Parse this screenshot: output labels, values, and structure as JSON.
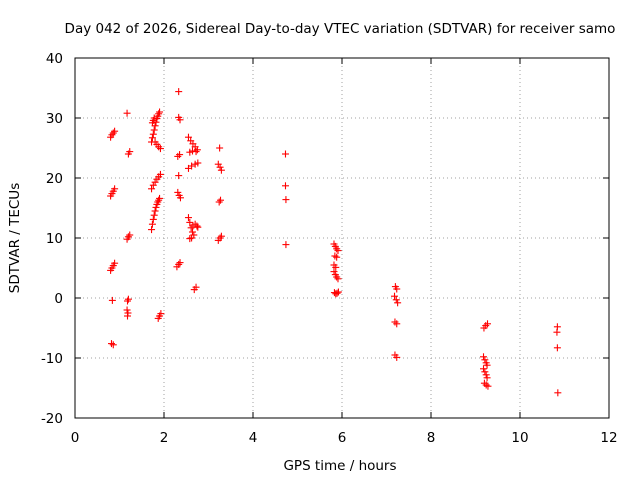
{
  "chart_data": {
    "type": "scatter",
    "title": "Day 042 of 2026, Sidereal Day-to-day VTEC variation (SDTVAR) for receiver samo",
    "xlabel": "GPS time / hours",
    "ylabel": "SDTVAR / TECUs",
    "xlim": [
      0,
      12
    ],
    "ylim": [
      -20,
      40
    ],
    "xticks": [
      "0",
      "2",
      "4",
      "6",
      "8",
      "10",
      "12"
    ],
    "yticks": [
      "-20",
      "-10",
      "0",
      "10",
      "20",
      "30",
      "40"
    ],
    "grid": true,
    "point_color": "#ff0000",
    "marker": "plus",
    "series": [
      {
        "name": "SDTVAR",
        "points": [
          [
            0.8,
            26.8
          ],
          [
            0.83,
            27.2
          ],
          [
            0.86,
            27.5
          ],
          [
            0.89,
            27.8
          ],
          [
            0.8,
            17.0
          ],
          [
            0.83,
            17.4
          ],
          [
            0.86,
            17.8
          ],
          [
            0.89,
            18.2
          ],
          [
            0.8,
            4.6
          ],
          [
            0.83,
            5.0
          ],
          [
            0.86,
            5.4
          ],
          [
            0.89,
            5.8
          ],
          [
            0.84,
            -0.4
          ],
          [
            0.86,
            -7.8
          ],
          [
            0.82,
            -7.6
          ],
          [
            1.17,
            30.8
          ],
          [
            1.2,
            24.0
          ],
          [
            1.23,
            24.4
          ],
          [
            1.17,
            9.8
          ],
          [
            1.2,
            10.2
          ],
          [
            1.23,
            10.5
          ],
          [
            1.18,
            -0.5
          ],
          [
            1.2,
            -0.2
          ],
          [
            1.17,
            -2.0
          ],
          [
            1.19,
            -2.5
          ],
          [
            1.18,
            -3.0
          ],
          [
            1.72,
            26.0
          ],
          [
            1.74,
            26.7
          ],
          [
            1.76,
            27.3
          ],
          [
            1.78,
            28.0
          ],
          [
            1.8,
            28.7
          ],
          [
            1.82,
            29.3
          ],
          [
            1.84,
            29.9
          ],
          [
            1.86,
            30.3
          ],
          [
            1.88,
            30.7
          ],
          [
            1.9,
            31.0
          ],
          [
            1.74,
            29.2
          ],
          [
            1.76,
            29.6
          ],
          [
            1.78,
            30.0
          ],
          [
            1.8,
            26.0
          ],
          [
            1.84,
            25.6
          ],
          [
            1.88,
            25.2
          ],
          [
            1.92,
            24.9
          ],
          [
            1.72,
            18.2
          ],
          [
            1.76,
            18.8
          ],
          [
            1.8,
            19.3
          ],
          [
            1.84,
            19.8
          ],
          [
            1.88,
            20.2
          ],
          [
            1.92,
            20.6
          ],
          [
            1.72,
            11.4
          ],
          [
            1.74,
            12.3
          ],
          [
            1.76,
            13.1
          ],
          [
            1.78,
            13.8
          ],
          [
            1.8,
            14.5
          ],
          [
            1.82,
            15.1
          ],
          [
            1.84,
            15.6
          ],
          [
            1.86,
            16.0
          ],
          [
            1.88,
            16.3
          ],
          [
            1.9,
            16.6
          ],
          [
            1.87,
            -3.4
          ],
          [
            1.9,
            -3.0
          ],
          [
            1.93,
            -2.6
          ],
          [
            2.33,
            34.4
          ],
          [
            2.33,
            30.1
          ],
          [
            2.36,
            29.7
          ],
          [
            2.31,
            23.6
          ],
          [
            2.35,
            23.9
          ],
          [
            2.33,
            20.4
          ],
          [
            2.31,
            17.6
          ],
          [
            2.34,
            17.1
          ],
          [
            2.37,
            16.7
          ],
          [
            2.29,
            5.2
          ],
          [
            2.33,
            5.6
          ],
          [
            2.36,
            5.9
          ],
          [
            2.55,
            26.8
          ],
          [
            2.6,
            26.2
          ],
          [
            2.65,
            25.7
          ],
          [
            2.7,
            25.2
          ],
          [
            2.75,
            24.7
          ],
          [
            2.58,
            24.3
          ],
          [
            2.64,
            24.5
          ],
          [
            2.72,
            24.4
          ],
          [
            2.55,
            21.6
          ],
          [
            2.62,
            22.0
          ],
          [
            2.7,
            22.3
          ],
          [
            2.76,
            22.5
          ],
          [
            2.55,
            13.4
          ],
          [
            2.58,
            12.6
          ],
          [
            2.61,
            11.7
          ],
          [
            2.64,
            11.0
          ],
          [
            2.67,
            10.5
          ],
          [
            2.62,
            10.0
          ],
          [
            2.58,
            9.9
          ],
          [
            2.65,
            12.0
          ],
          [
            2.7,
            12.3
          ],
          [
            2.74,
            12.0
          ],
          [
            2.76,
            11.8
          ],
          [
            2.68,
            1.4
          ],
          [
            2.72,
            1.8
          ],
          [
            3.25,
            25.0
          ],
          [
            3.22,
            22.3
          ],
          [
            3.26,
            21.8
          ],
          [
            3.29,
            21.3
          ],
          [
            3.24,
            16.0
          ],
          [
            3.27,
            16.3
          ],
          [
            3.22,
            9.6
          ],
          [
            3.26,
            10.0
          ],
          [
            3.29,
            10.3
          ],
          [
            4.73,
            24.0
          ],
          [
            4.73,
            18.7
          ],
          [
            4.74,
            16.4
          ],
          [
            4.74,
            8.9
          ],
          [
            5.82,
            9.0
          ],
          [
            5.85,
            8.6
          ],
          [
            5.88,
            8.2
          ],
          [
            5.91,
            7.9
          ],
          [
            5.84,
            7.0
          ],
          [
            5.88,
            6.8
          ],
          [
            5.82,
            5.5
          ],
          [
            5.86,
            5.1
          ],
          [
            5.82,
            4.4
          ],
          [
            5.85,
            3.9
          ],
          [
            5.88,
            3.5
          ],
          [
            5.91,
            3.2
          ],
          [
            5.83,
            0.9
          ],
          [
            5.86,
            0.7
          ],
          [
            5.89,
            0.8
          ],
          [
            5.92,
            1.0
          ],
          [
            7.2,
            1.9
          ],
          [
            7.23,
            1.5
          ],
          [
            7.18,
            0.3
          ],
          [
            7.22,
            -0.3
          ],
          [
            7.25,
            -0.8
          ],
          [
            7.19,
            -4.0
          ],
          [
            7.23,
            -4.3
          ],
          [
            7.19,
            -9.5
          ],
          [
            7.23,
            -9.9
          ],
          [
            9.19,
            -5.0
          ],
          [
            9.23,
            -4.6
          ],
          [
            9.27,
            -4.3
          ],
          [
            9.18,
            -9.8
          ],
          [
            9.21,
            -10.3
          ],
          [
            9.24,
            -10.8
          ],
          [
            9.26,
            -11.2
          ],
          [
            9.18,
            -11.8
          ],
          [
            9.21,
            -12.3
          ],
          [
            9.24,
            -12.8
          ],
          [
            9.26,
            -13.3
          ],
          [
            9.2,
            -14.2
          ],
          [
            9.24,
            -14.5
          ],
          [
            9.28,
            -14.7
          ],
          [
            10.84,
            -4.8
          ],
          [
            10.83,
            -5.7
          ],
          [
            10.84,
            -8.3
          ],
          [
            10.85,
            -15.8
          ]
        ]
      }
    ]
  }
}
